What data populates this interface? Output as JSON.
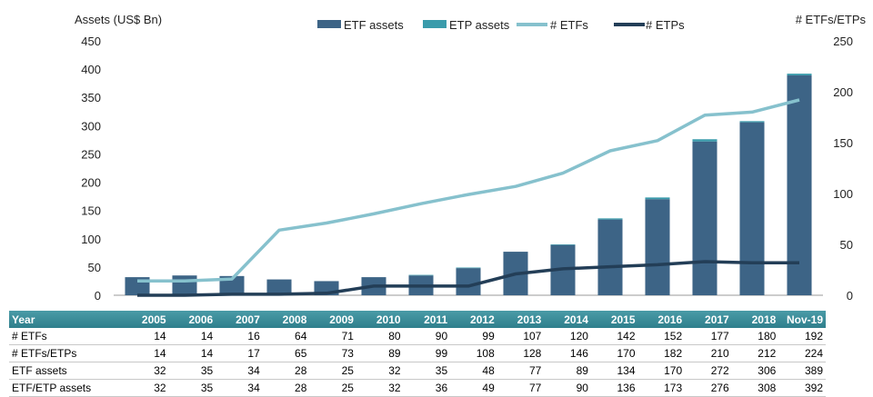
{
  "colors": {
    "etf_assets": "#3d6486",
    "etp_assets": "#3a9bab",
    "num_etfs": "#86c1cd",
    "num_etps": "#233e57",
    "table_header": "#3b8c99"
  },
  "chart_data": {
    "type": "bar",
    "categories": [
      "2005",
      "2006",
      "2007",
      "2008",
      "2009",
      "2010",
      "2011",
      "2012",
      "2013",
      "2014",
      "2015",
      "2016",
      "2017",
      "2018",
      "Nov-19"
    ],
    "series": [
      {
        "name": "ETF assets",
        "kind": "bar-stack-bottom",
        "axis": "left",
        "values": [
          32,
          35,
          34,
          28,
          25,
          32,
          35,
          48,
          77,
          89,
          134,
          170,
          272,
          306,
          389
        ]
      },
      {
        "name": "ETP assets",
        "kind": "bar-stack-top",
        "axis": "left",
        "values": [
          0,
          0,
          0,
          0,
          0,
          0,
          1,
          1,
          0,
          1,
          2,
          3,
          4,
          2,
          3
        ]
      },
      {
        "name": "# ETFs",
        "kind": "line",
        "axis": "right",
        "values": [
          14,
          14,
          16,
          64,
          71,
          80,
          90,
          99,
          107,
          120,
          142,
          152,
          177,
          180,
          192
        ]
      },
      {
        "name": "# ETPs",
        "kind": "line",
        "axis": "right",
        "values": [
          0,
          0,
          1,
          1,
          2,
          9,
          9,
          9,
          21,
          26,
          28,
          30,
          33,
          32,
          32
        ]
      }
    ],
    "ylabel_left": "Assets (US$ Bn)",
    "ylabel_right": "# ETFs/ETPs",
    "ylim_left": [
      0,
      450
    ],
    "ylim_right": [
      0,
      250
    ],
    "yticks_left": [
      "450",
      "400",
      "350",
      "300",
      "250",
      "200",
      "150",
      "100",
      "50",
      "0"
    ],
    "yticks_right": [
      "250",
      "200",
      "150",
      "100",
      "50",
      "0"
    ],
    "legend_position": "top"
  },
  "table": {
    "header_label": "Year",
    "years": [
      "2005",
      "2006",
      "2007",
      "2008",
      "2009",
      "2010",
      "2011",
      "2012",
      "2013",
      "2014",
      "2015",
      "2016",
      "2017",
      "2018",
      "Nov-19"
    ],
    "rows": [
      {
        "label": "# ETFs",
        "values": [
          "14",
          "14",
          "16",
          "64",
          "71",
          "80",
          "90",
          "99",
          "107",
          "120",
          "142",
          "152",
          "177",
          "180",
          "192"
        ]
      },
      {
        "label": "# ETFs/ETPs",
        "values": [
          "14",
          "14",
          "17",
          "65",
          "73",
          "89",
          "99",
          "108",
          "128",
          "146",
          "170",
          "182",
          "210",
          "212",
          "224"
        ]
      },
      {
        "label": "ETF assets",
        "values": [
          "32",
          "35",
          "34",
          "28",
          "25",
          "32",
          "35",
          "48",
          "77",
          "89",
          "134",
          "170",
          "272",
          "306",
          "389"
        ]
      },
      {
        "label": "ETF/ETP assets",
        "values": [
          "32",
          "35",
          "34",
          "28",
          "25",
          "32",
          "36",
          "49",
          "77",
          "90",
          "136",
          "173",
          "276",
          "308",
          "392"
        ]
      }
    ]
  }
}
